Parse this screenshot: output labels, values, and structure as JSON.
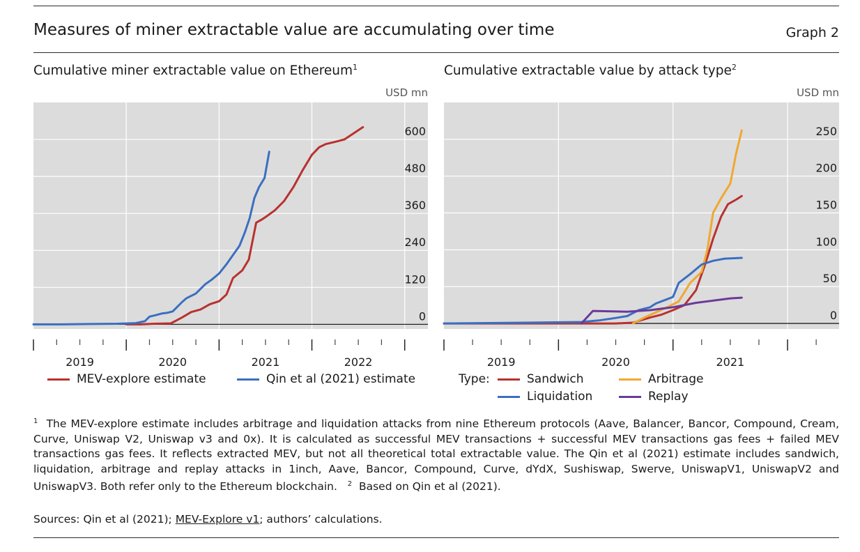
{
  "header": {
    "title": "Measures of miner extractable value are accumulating over time",
    "graph_number": "Graph 2"
  },
  "left_panel": {
    "title": "Cumulative miner extractable value on Ethereum",
    "title_note": "1",
    "legend": [
      {
        "label": "MEV-explore estimate",
        "color": "#b8312f"
      },
      {
        "label": "Qin et al (2021) estimate",
        "color": "#3a6fc0"
      }
    ]
  },
  "right_panel": {
    "title": "Cumulative extractable value by attack type",
    "title_note": "2",
    "legend_type_label": "Type:",
    "legend": [
      {
        "label": "Sandwich",
        "color": "#b8312f"
      },
      {
        "label": "Arbitrage",
        "color": "#f0a830"
      },
      {
        "label": "Liquidation",
        "color": "#3a6fc0"
      },
      {
        "label": "Replay",
        "color": "#6a3a9a"
      }
    ]
  },
  "chart_data": [
    {
      "type": "line",
      "title": "Cumulative miner extractable value on Ethereum",
      "ylabel": "USD mn",
      "xlabel": "",
      "ylim": [
        -15,
        720
      ],
      "xlim": [
        2018.3,
        2022.55
      ],
      "yticks": [
        0,
        120,
        240,
        360,
        480,
        600
      ],
      "xtick_labels": [
        "2019",
        "2020",
        "2021",
        "2022"
      ],
      "xtick_label_positions": [
        2018.8,
        2019.8,
        2020.8,
        2021.8
      ],
      "year_boundaries": [
        2018.3,
        2019.3,
        2020.3,
        2021.3,
        2022.3
      ],
      "series": [
        {
          "name": "MEV-explore estimate",
          "color": "#b8312f",
          "x": [
            2019.3,
            2019.45,
            2019.6,
            2019.78,
            2019.9,
            2020.0,
            2020.1,
            2020.2,
            2020.3,
            2020.38,
            2020.45,
            2020.55,
            2020.62,
            2020.7,
            2020.76,
            2020.8,
            2020.9,
            2021.0,
            2021.1,
            2021.2,
            2021.3,
            2021.38,
            2021.45,
            2021.55,
            2021.65,
            2021.75,
            2021.85
          ],
          "y": [
            0,
            0,
            2,
            3,
            22,
            40,
            48,
            65,
            75,
            97,
            150,
            175,
            210,
            330,
            340,
            348,
            370,
            400,
            445,
            500,
            550,
            575,
            585,
            592,
            600,
            620,
            640
          ]
        },
        {
          "name": "Qin et al (2021) estimate",
          "color": "#3a6fc0",
          "x": [
            2018.3,
            2018.6,
            2018.9,
            2019.2,
            2019.4,
            2019.5,
            2019.55,
            2019.62,
            2019.68,
            2019.75,
            2019.8,
            2019.9,
            2019.95,
            2020.05,
            2020.15,
            2020.22,
            2020.3,
            2020.38,
            2020.45,
            2020.52,
            2020.58,
            2020.63,
            2020.68,
            2020.73,
            2020.79,
            2020.84
          ],
          "y": [
            0,
            0,
            1,
            2,
            4,
            10,
            25,
            30,
            35,
            38,
            42,
            72,
            85,
            100,
            130,
            145,
            165,
            195,
            225,
            255,
            300,
            345,
            410,
            445,
            475,
            560
          ]
        }
      ]
    },
    {
      "type": "line",
      "title": "Cumulative extractable value by attack type",
      "ylabel": "USD mn",
      "xlabel": "",
      "ylim": [
        -7.5,
        300
      ],
      "xlim": [
        2018.3,
        2021.75
      ],
      "yticks": [
        0,
        50,
        100,
        150,
        200,
        250
      ],
      "xtick_labels": [
        "2019",
        "2020",
        "2021"
      ],
      "xtick_label_positions": [
        2018.8,
        2019.8,
        2020.8
      ],
      "year_boundaries": [
        2018.3,
        2019.3,
        2020.3,
        2021.3
      ],
      "series": [
        {
          "name": "Sandwich",
          "color": "#b8312f",
          "x": [
            2018.3,
            2019.0,
            2019.8,
            2019.95,
            2020.1,
            2020.2,
            2020.3,
            2020.4,
            2020.5,
            2020.58,
            2020.65,
            2020.72,
            2020.78,
            2020.85,
            2020.9
          ],
          "y": [
            0,
            0,
            0,
            1,
            8,
            12,
            18,
            25,
            45,
            80,
            115,
            145,
            162,
            168,
            173
          ]
        },
        {
          "name": "Arbitrage",
          "color": "#f0a830",
          "x": [
            2019.95,
            2020.05,
            2020.15,
            2020.25,
            2020.35,
            2020.45,
            2020.55,
            2020.6,
            2020.65,
            2020.72,
            2020.8,
            2020.85,
            2020.9
          ],
          "y": [
            0,
            8,
            15,
            22,
            30,
            55,
            70,
            100,
            150,
            170,
            190,
            230,
            262
          ]
        },
        {
          "name": "Liquidation",
          "color": "#3a6fc0",
          "x": [
            2018.3,
            2019.0,
            2019.5,
            2019.65,
            2019.78,
            2019.9,
            2020.0,
            2020.1,
            2020.15,
            2020.25,
            2020.3,
            2020.35,
            2020.45,
            2020.55,
            2020.65,
            2020.75,
            2020.9
          ],
          "y": [
            0,
            1,
            2,
            4,
            7,
            10,
            18,
            22,
            27,
            33,
            36,
            55,
            67,
            80,
            85,
            88,
            89
          ]
        },
        {
          "name": "Replay",
          "color": "#6a3a9a",
          "x": [
            2019.5,
            2019.6,
            2019.9,
            2020.1,
            2020.3,
            2020.5,
            2020.7,
            2020.8,
            2020.9
          ],
          "y": [
            0,
            17,
            16,
            18,
            22,
            28,
            32,
            34,
            35
          ]
        }
      ]
    }
  ],
  "footnote": {
    "marker1": "1",
    "text1": "The MEV-explore estimate includes arbitrage and liquidation attacks from nine Ethereum protocols (Aave, Balancer, Bancor, Compound, Cream, Curve, Uniswap V2, Uniswap v3 and 0x). It is calculated as successful MEV transactions + successful MEV transactions gas fees + failed MEV transactions gas fees. It reflects extracted MEV, but not all theoretical total extractable value. The Qin et al (2021) estimate includes sandwich, liquidation, arbitrage and replay attacks in 1inch, Aave, Bancor, Compound, Curve, dYdX, Sushiswap, Swerve, UniswapV1, UniswapV2 and UniswapV3. Both refer only to the Ethereum blockchain.",
    "marker2": "2",
    "text2": "Based on Qin et al (2021)."
  },
  "sources": {
    "prefix": "Sources: Qin et al (2021); ",
    "link": "MEV-Explore v1",
    "suffix": "; authors’ calculations."
  }
}
